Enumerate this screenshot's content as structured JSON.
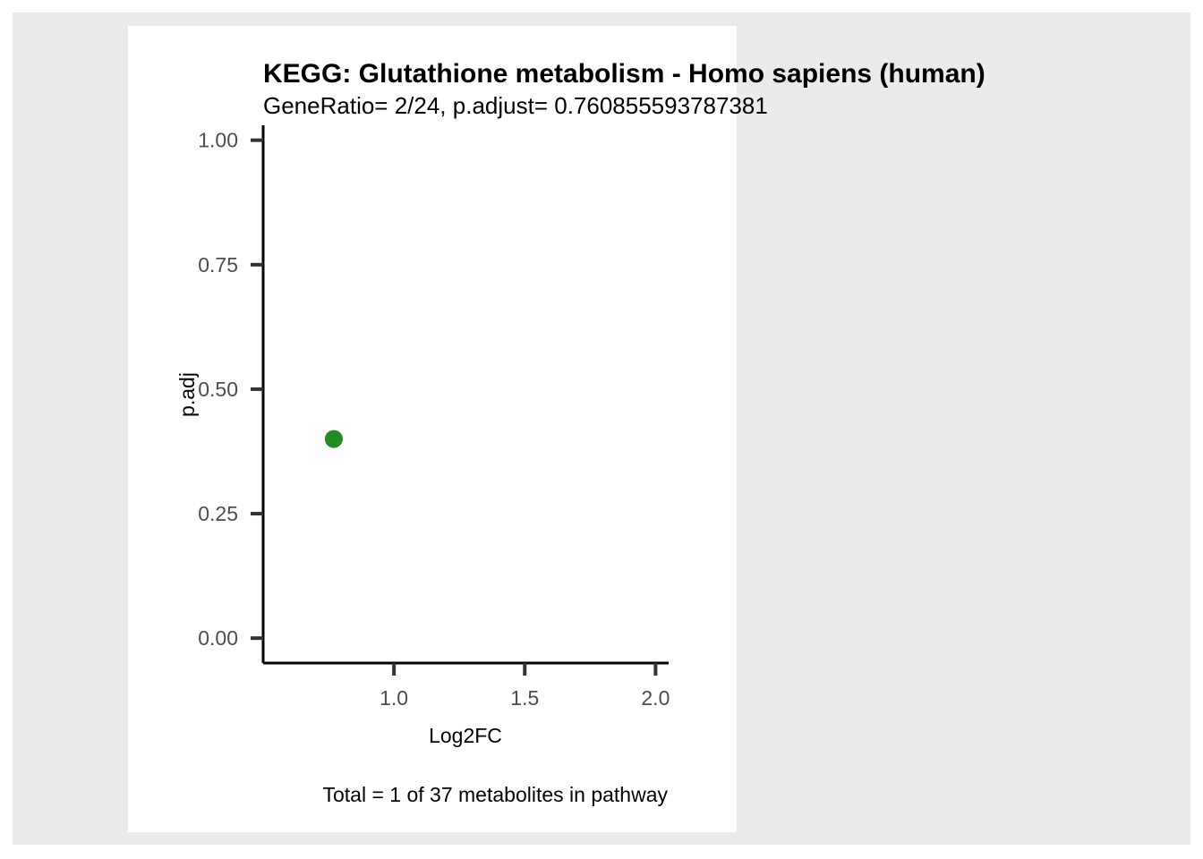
{
  "chart_data": {
    "type": "scatter",
    "title": "KEGG: Glutathione metabolism - Homo sapiens (human)",
    "subtitle": "GeneRatio= 2/24, p.adjust= 0.760855593787381",
    "xlabel": "Log2FC",
    "ylabel": "p.adj",
    "caption": "Total = 1 of 37 metabolites in pathway",
    "xlim": [
      0.5,
      2.05
    ],
    "ylim": [
      -0.05,
      1.03
    ],
    "x_ticks": [
      1.0,
      1.5,
      2.0
    ],
    "x_tick_labels": [
      "1.0",
      "1.5",
      "2.0"
    ],
    "y_ticks": [
      0.0,
      0.25,
      0.5,
      0.75,
      1.0
    ],
    "y_tick_labels": [
      "0.00",
      "0.25",
      "0.50",
      "0.75",
      "1.00"
    ],
    "grid": false,
    "series": [
      {
        "color": "#228b22",
        "points": [
          {
            "x": 0.77,
            "y": 0.4
          }
        ]
      }
    ]
  }
}
